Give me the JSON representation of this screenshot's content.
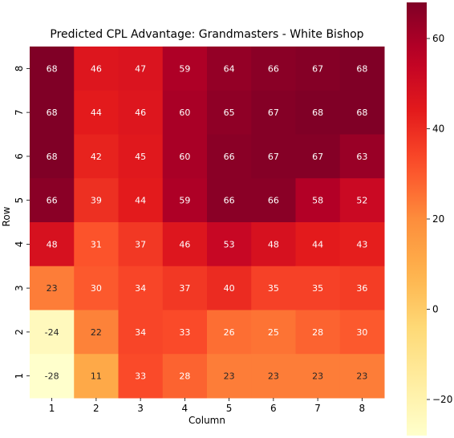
{
  "chart_data": {
    "type": "heatmap",
    "title": "Predicted CPL Advantage: Grandmasters - White Bishop",
    "xlabel": "Column",
    "ylabel": "Row",
    "x_categories": [
      "1",
      "2",
      "3",
      "4",
      "5",
      "6",
      "7",
      "8"
    ],
    "y_categories": [
      "8",
      "7",
      "6",
      "5",
      "4",
      "3",
      "2",
      "1"
    ],
    "values": [
      [
        68,
        46,
        47,
        59,
        64,
        66,
        67,
        68
      ],
      [
        68,
        44,
        46,
        60,
        65,
        67,
        68,
        68
      ],
      [
        68,
        42,
        45,
        60,
        66,
        67,
        67,
        63
      ],
      [
        66,
        39,
        44,
        59,
        66,
        66,
        58,
        52
      ],
      [
        48,
        31,
        37,
        46,
        53,
        48,
        44,
        43
      ],
      [
        23,
        30,
        34,
        37,
        40,
        35,
        35,
        36
      ],
      [
        -24,
        22,
        34,
        33,
        26,
        25,
        28,
        30
      ],
      [
        -28,
        11,
        33,
        28,
        23,
        23,
        23,
        23
      ]
    ],
    "colorbar": {
      "min": -28,
      "max": 68,
      "ticks": [
        "-20",
        "0",
        "20",
        "40",
        "60"
      ],
      "colormap": "YlOrRd"
    }
  }
}
